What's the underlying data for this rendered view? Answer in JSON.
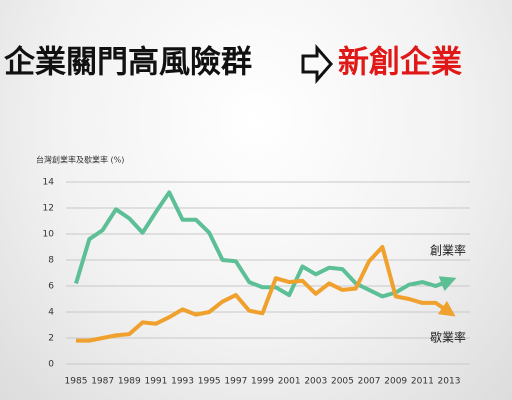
{
  "slide": {
    "title_left": "企業關門高風險群",
    "title_right": "新創企業"
  },
  "chart_data": {
    "type": "line",
    "y_label": "台灣創業率及歇業率 (%)",
    "x": [
      1985,
      1986,
      1987,
      1988,
      1989,
      1990,
      1991,
      1992,
      1993,
      1994,
      1995,
      1996,
      1997,
      1998,
      1999,
      2000,
      2001,
      2002,
      2003,
      2004,
      2005,
      2006,
      2007,
      2008,
      2009,
      2010,
      2011,
      2012,
      2013
    ],
    "series": [
      {
        "name": "創業率",
        "color": "#5cbf96",
        "values": [
          6.2,
          9.6,
          10.3,
          11.9,
          11.2,
          10.1,
          11.7,
          13.2,
          11.1,
          11.1,
          10.1,
          8.0,
          7.9,
          6.3,
          5.9,
          5.9,
          5.3,
          7.5,
          6.9,
          7.4,
          7.3,
          6.2,
          5.7,
          5.2,
          5.5,
          6.1,
          6.3,
          6.0,
          6.4
        ]
      },
      {
        "name": "歇業率",
        "color": "#f0a02c",
        "values": [
          1.8,
          1.8,
          2.0,
          2.2,
          2.3,
          3.2,
          3.1,
          3.6,
          4.2,
          3.8,
          4.0,
          4.8,
          5.3,
          4.1,
          3.9,
          6.6,
          6.3,
          6.4,
          5.4,
          6.2,
          5.7,
          5.8,
          7.9,
          9.0,
          5.2,
          5.0,
          4.7,
          4.7,
          4.0
        ]
      }
    ],
    "xlim": [
      1985,
      2013
    ],
    "xticks": [
      1985,
      1987,
      1989,
      1991,
      1993,
      1995,
      1997,
      1999,
      2001,
      2003,
      2005,
      2007,
      2009,
      2011,
      2013
    ],
    "ylim": [
      0,
      14
    ],
    "yticks": [
      0,
      2,
      4,
      6,
      8,
      10,
      12,
      14
    ],
    "grid": true
  }
}
